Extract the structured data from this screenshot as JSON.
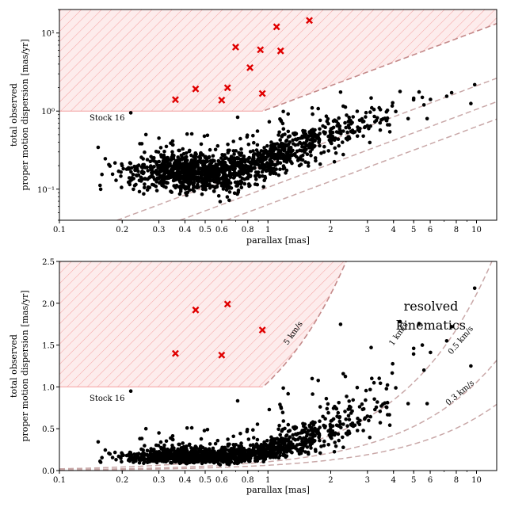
{
  "chart_data": [
    {
      "type": "scatter",
      "panel": "top",
      "xscale": "log",
      "yscale": "log",
      "xlabel": "parallax [mas]",
      "ylabel": [
        "total observed",
        "proper motion dispersion [mas/yr]"
      ],
      "xlim": [
        0.1,
        12.5
      ],
      "ylim": [
        0.04,
        20
      ],
      "xticks": [
        0.1,
        0.2,
        0.3,
        0.4,
        0.5,
        0.6,
        0.8,
        1,
        2,
        3,
        4,
        5,
        6,
        8,
        10
      ],
      "xtick_labels": [
        "0.1",
        "0.2",
        "0.3",
        "0.4",
        "0.5",
        "0.6",
        "0.8",
        "1",
        "2",
        "3",
        "4",
        "5",
        "6",
        "8",
        "10"
      ],
      "yticks": [
        0.1,
        1,
        10
      ],
      "ytick_labels": [
        "10⁻¹",
        "10⁰",
        "10¹"
      ],
      "annotations": [
        {
          "text": "Stock 16",
          "x": 0.15,
          "y": 0.78
        }
      ],
      "velocity_curves_kms": [
        0.3,
        0.5,
        1,
        5
      ],
      "excluded_region": "hatched region above max(1 mas/yr, 5 km/s curve)",
      "highlighted_series": {
        "name": "outliers",
        "marker": "red x",
        "points": [
          [
            0.36,
            1.4
          ],
          [
            0.45,
            1.92
          ],
          [
            0.6,
            1.38
          ],
          [
            0.64,
            1.99
          ],
          [
            0.7,
            6.6
          ],
          [
            0.82,
            3.6
          ],
          [
            0.92,
            6.1
          ],
          [
            0.94,
            1.68
          ],
          [
            1.1,
            12
          ],
          [
            1.15,
            5.9
          ],
          [
            1.58,
            14.5
          ]
        ]
      },
      "main_series": {
        "name": "clusters",
        "marker": "black dot",
        "count": 1500,
        "trend": "about 0.17 mas/yr for parallax < 0.8 mas, rising roughly as 0.22 × parallax above 1 mas",
        "points": [
          [
            0.22,
            0.95
          ],
          [
            0.26,
            0.5
          ],
          [
            0.3,
            0.45
          ],
          [
            0.2,
            0.2
          ],
          [
            0.35,
            0.17
          ],
          [
            0.5,
            0.15
          ],
          [
            0.7,
            0.16
          ],
          [
            1,
            0.2
          ],
          [
            1.5,
            0.3
          ],
          [
            2,
            0.45
          ],
          [
            2.5,
            0.55
          ],
          [
            3,
            0.65
          ],
          [
            4.3,
            1.78
          ],
          [
            4.7,
            0.8
          ],
          [
            5.0,
            1.46
          ],
          [
            5.5,
            1.5
          ],
          [
            5.6,
            1.2
          ],
          [
            5.8,
            0.8
          ],
          [
            7.2,
            1.55
          ],
          [
            7.6,
            1.72
          ],
          [
            9.4,
            1.25
          ],
          [
            9.8,
            2.18
          ]
        ]
      }
    },
    {
      "type": "scatter",
      "panel": "bottom",
      "xscale": "log",
      "yscale": "linear",
      "xlabel": "parallax [mas]",
      "ylabel": [
        "total observed",
        "proper motion dispersion [mas/yr]"
      ],
      "xlim": [
        0.1,
        12.5
      ],
      "ylim": [
        0,
        2.5
      ],
      "xticks": [
        0.1,
        0.2,
        0.3,
        0.4,
        0.5,
        0.6,
        0.8,
        1,
        2,
        3,
        4,
        5,
        6,
        8,
        10
      ],
      "xtick_labels": [
        "0.1",
        "0.2",
        "0.3",
        "0.4",
        "0.5",
        "0.6",
        "0.8",
        "1",
        "2",
        "3",
        "4",
        "5",
        "6",
        "8",
        "10"
      ],
      "yticks": [
        0,
        0.5,
        1,
        1.5,
        2,
        2.5
      ],
      "ytick_labels": [
        "0.0",
        "0.5",
        "1.0",
        "1.5",
        "2.0",
        "2.5"
      ],
      "annotations": [
        {
          "text": "Stock 16",
          "x": 0.15,
          "y": 0.91
        },
        {
          "text": "resolved",
          "x": 5.6,
          "y": 2.36
        },
        {
          "text": "kinematics",
          "x": 5.6,
          "y": 2.13
        }
      ],
      "curve_labels": [
        {
          "text": "5 km/s",
          "x": 1.08,
          "y": 1.7
        },
        {
          "text": "1 km/s",
          "x": 4.25,
          "y": 1.55
        },
        {
          "text": "0.5 km/s",
          "x": 7.4,
          "y": 1.45
        },
        {
          "text": "0.3 km/s",
          "x": 8.8,
          "y": 0.95
        }
      ],
      "velocity_curves_kms": [
        0.3,
        0.5,
        1,
        5
      ],
      "highlighted_series": {
        "name": "outliers",
        "marker": "red x",
        "points": [
          [
            0.36,
            1.4
          ],
          [
            0.45,
            1.92
          ],
          [
            0.6,
            1.38
          ],
          [
            0.64,
            1.99
          ],
          [
            0.94,
            1.68
          ]
        ]
      },
      "main_series": {
        "name": "clusters",
        "marker": "black dot",
        "count": 1500,
        "points": [
          [
            0.22,
            0.95
          ],
          [
            0.26,
            0.5
          ],
          [
            0.3,
            0.45
          ],
          [
            4.3,
            1.78
          ],
          [
            4.7,
            0.8
          ],
          [
            5.0,
            1.46
          ],
          [
            5.5,
            1.5
          ],
          [
            5.6,
            1.2
          ],
          [
            5.8,
            0.8
          ],
          [
            7.2,
            1.55
          ],
          [
            7.6,
            1.72
          ],
          [
            9.4,
            1.25
          ],
          [
            9.8,
            2.18
          ]
        ]
      }
    }
  ],
  "style": {
    "hatch_color": "#f4a0a0",
    "hatch_fill": "#fdecec",
    "curve_color": "#c9a8a8",
    "curve_label_color": "#7a3a3a",
    "outlier_color": "#e00000",
    "point_color": "#000000",
    "resolved_label_color": "#333333"
  }
}
